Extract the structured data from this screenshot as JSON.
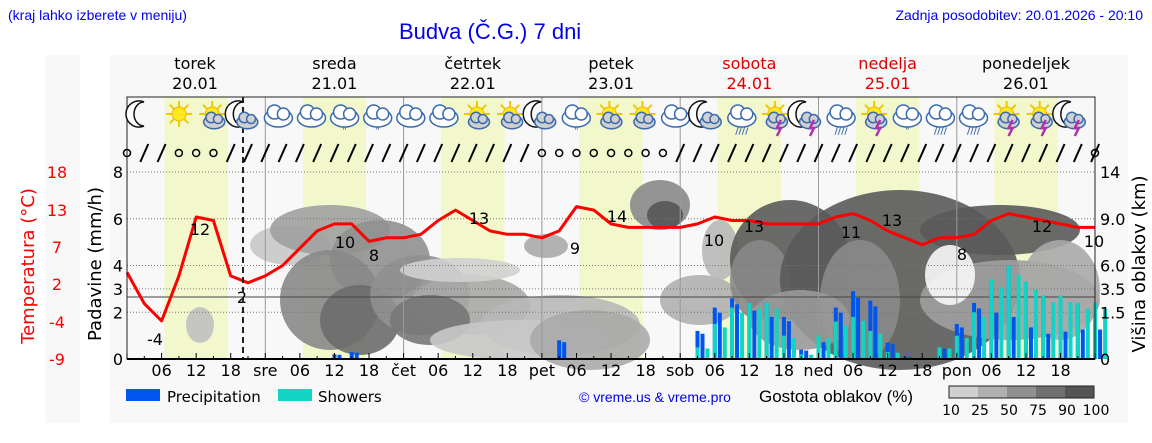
{
  "header": {
    "location_hint": "(kraj lahko izberete v meniju)",
    "title": "Budva (Č.G.) 7 dni",
    "last_update": "Zadnja posodobitev: 20.01.2026 - 20:10"
  },
  "colors": {
    "link": "#0000ee",
    "temperature": "#ff0000",
    "weekend": "#dd0000",
    "precipitation": "#0055ee",
    "showers": "#11d4c4",
    "daylight": "#f2f8cc"
  },
  "days": [
    {
      "name": "torek",
      "date": "20.01",
      "weekend": false
    },
    {
      "name": "sreda",
      "date": "21.01",
      "weekend": false
    },
    {
      "name": "četrtek",
      "date": "22.01",
      "weekend": false
    },
    {
      "name": "petek",
      "date": "23.01",
      "weekend": false
    },
    {
      "name": "sobota",
      "date": "24.01",
      "weekend": true
    },
    {
      "name": "nedelja",
      "date": "25.01",
      "weekend": true
    },
    {
      "name": "ponedeljek",
      "date": "26.01",
      "weekend": false
    }
  ],
  "x_ticks": [
    "06",
    "12",
    "18",
    "sre",
    "06",
    "12",
    "18",
    "čet",
    "06",
    "12",
    "18",
    "pet",
    "06",
    "12",
    "18",
    "sob",
    "06",
    "12",
    "18",
    "ned",
    "06",
    "12",
    "18",
    "pon",
    "06",
    "12",
    "18"
  ],
  "axes": {
    "temperature_label": "Temperatura (°C)",
    "temperature_ticks": [
      "18",
      "13",
      "7",
      "2",
      "-4",
      "-9"
    ],
    "precip_label": "Padavine (mm/h)",
    "precip_ticks": [
      "8",
      "6",
      "4",
      "3",
      "2",
      "0"
    ],
    "cloud_height_label": "Višina oblakov (km)",
    "cloud_height_ticks": [
      "14",
      "9.0",
      "6.0",
      "3.5",
      "1.5",
      "0"
    ]
  },
  "legend": {
    "precipitation": "Precipitation",
    "showers": "Showers",
    "copyright": "© vreme.us & vreme.pro",
    "cloud_density_label": "Gostota oblakov (%)",
    "cloud_density_ticks": [
      "10",
      "25",
      "50",
      "75",
      "90",
      "100"
    ],
    "cloud_density_colors": [
      "#d0d0d0",
      "#b0b0b0",
      "#909090",
      "#707070",
      "#555555"
    ]
  },
  "weather_icons": [
    "moon",
    "sun",
    "sun-cloud",
    "moon-cloud",
    "cloud",
    "cloud",
    "cloud-drizzle",
    "cloud-drizzle",
    "cloud",
    "cloud",
    "sun-cloud",
    "sun-cloud",
    "moon-cloud",
    "cloud-drizzle",
    "sun-cloud",
    "sun-cloud",
    "cloud",
    "moon-cloud",
    "cloud-rain",
    "sun-storm",
    "moon-storm",
    "cloud-rain",
    "sun-storm",
    "cloud-drizzle",
    "cloud-rain",
    "cloud-rain",
    "sun-storm",
    "sun-storm",
    "moon-storm"
  ],
  "chart_data": {
    "type": "line",
    "title": "Budva (Č.G.) 7 dni",
    "xlabel": "",
    "ylabel": "Temperatura (°C)",
    "ylim": [
      -9,
      18
    ],
    "x": [
      "20.01 00",
      "20.01 03",
      "20.01 06",
      "20.01 09",
      "20.01 12",
      "20.01 15",
      "20.01 18",
      "20.01 21",
      "21.01 00",
      "21.01 03",
      "21.01 06",
      "21.01 09",
      "21.01 12",
      "21.01 15",
      "21.01 18",
      "21.01 21",
      "22.01 00",
      "22.01 03",
      "22.01 06",
      "22.01 09",
      "22.01 12",
      "22.01 15",
      "22.01 18",
      "22.01 21",
      "23.01 00",
      "23.01 03",
      "23.01 06",
      "23.01 09",
      "23.01 12",
      "23.01 15",
      "23.01 18",
      "23.01 21",
      "24.01 00",
      "24.01 03",
      "24.01 06",
      "24.01 09",
      "24.01 12",
      "24.01 15",
      "24.01 18",
      "24.01 21",
      "25.01 00",
      "25.01 03",
      "25.01 06",
      "25.01 09",
      "25.01 12",
      "25.01 15",
      "25.01 18",
      "25.01 21",
      "26.01 00",
      "26.01 03",
      "26.01 06",
      "26.01 09",
      "26.01 12",
      "26.01 15",
      "26.01 18",
      "26.01 21",
      "27.01 00"
    ],
    "series": [
      {
        "name": "Temperatura",
        "values": [
          3.5,
          -1,
          -3.5,
          3,
          11.5,
          11,
          3,
          2,
          3,
          4.5,
          7,
          9.5,
          10.5,
          10.5,
          8,
          8.5,
          8.5,
          9,
          11,
          12.5,
          11,
          9.5,
          9,
          9,
          8.5,
          9.5,
          13,
          12.5,
          10.5,
          10,
          10,
          10,
          10,
          10.5,
          11.5,
          11,
          11,
          10.5,
          10.5,
          10.5,
          10.5,
          11.5,
          12,
          11,
          9.5,
          8.5,
          7.5,
          8.5,
          8.5,
          9,
          11,
          12,
          11.5,
          11,
          10.5,
          10,
          10
        ]
      },
      {
        "name": "Precipitation",
        "unit": "mm/h",
        "values": [
          0,
          0,
          0,
          0,
          0,
          0,
          0,
          0,
          0,
          0,
          0,
          0,
          0.2,
          0.3,
          0,
          0,
          0,
          0,
          0,
          0,
          0,
          0,
          0,
          0,
          0,
          0.8,
          0,
          0,
          0,
          0,
          0,
          0,
          0,
          1.2,
          2.2,
          2.6,
          2.3,
          2.0,
          1.8,
          0.4,
          0.8,
          2.2,
          2.9,
          2.5,
          0.7,
          0.1,
          0,
          0.5,
          1.5,
          2.4,
          2.2,
          2.0,
          1.5,
          1.2,
          1.3,
          1.4,
          1.4
        ]
      },
      {
        "name": "Showers",
        "unit": "mm/h",
        "values": [
          0,
          0,
          0,
          0,
          0,
          0,
          0,
          0,
          0,
          0,
          0,
          0,
          0,
          0,
          0,
          0,
          0,
          0,
          0,
          0,
          0,
          0,
          0,
          0,
          0,
          0,
          0,
          0,
          0,
          0,
          0,
          0,
          0,
          0.5,
          1.5,
          2.2,
          2.4,
          2.4,
          1.0,
          0.2,
          1.0,
          1.6,
          1.8,
          1.2,
          0.3,
          0,
          0,
          0.5,
          1.0,
          2.0,
          3.4,
          4.0,
          3.3,
          2.7,
          2.7,
          2.4,
          2.4
        ]
      }
    ],
    "point_labels": [
      {
        "x": "20.01 05",
        "value": "-4"
      },
      {
        "x": "20.01 14",
        "value": "12"
      },
      {
        "x": "20.01 20",
        "value": "2"
      },
      {
        "x": "21.01 14",
        "value": "10"
      },
      {
        "x": "21.01 18",
        "value": "8"
      },
      {
        "x": "22.01 14",
        "value": "13"
      },
      {
        "x": "23.01 06",
        "value": "9"
      },
      {
        "x": "23.01 14",
        "value": "14"
      },
      {
        "x": "24.01 06",
        "value": "10"
      },
      {
        "x": "24.01 13",
        "value": "13"
      },
      {
        "x": "25.01 05",
        "value": "11"
      },
      {
        "x": "25.01 13",
        "value": "13"
      },
      {
        "x": "26.01 03",
        "value": "8"
      },
      {
        "x": "26.01 16",
        "value": "12"
      },
      {
        "x": "26.01 23",
        "value": "10"
      }
    ],
    "secondary_axes": {
      "precip_ylim": [
        0,
        8
      ],
      "cloud_height_km_ticks": [
        0,
        1.5,
        3.5,
        6.0,
        9.0,
        14
      ]
    },
    "grid": true,
    "legend_position": "bottom",
    "current_time_marker": "20.01 20:10"
  }
}
